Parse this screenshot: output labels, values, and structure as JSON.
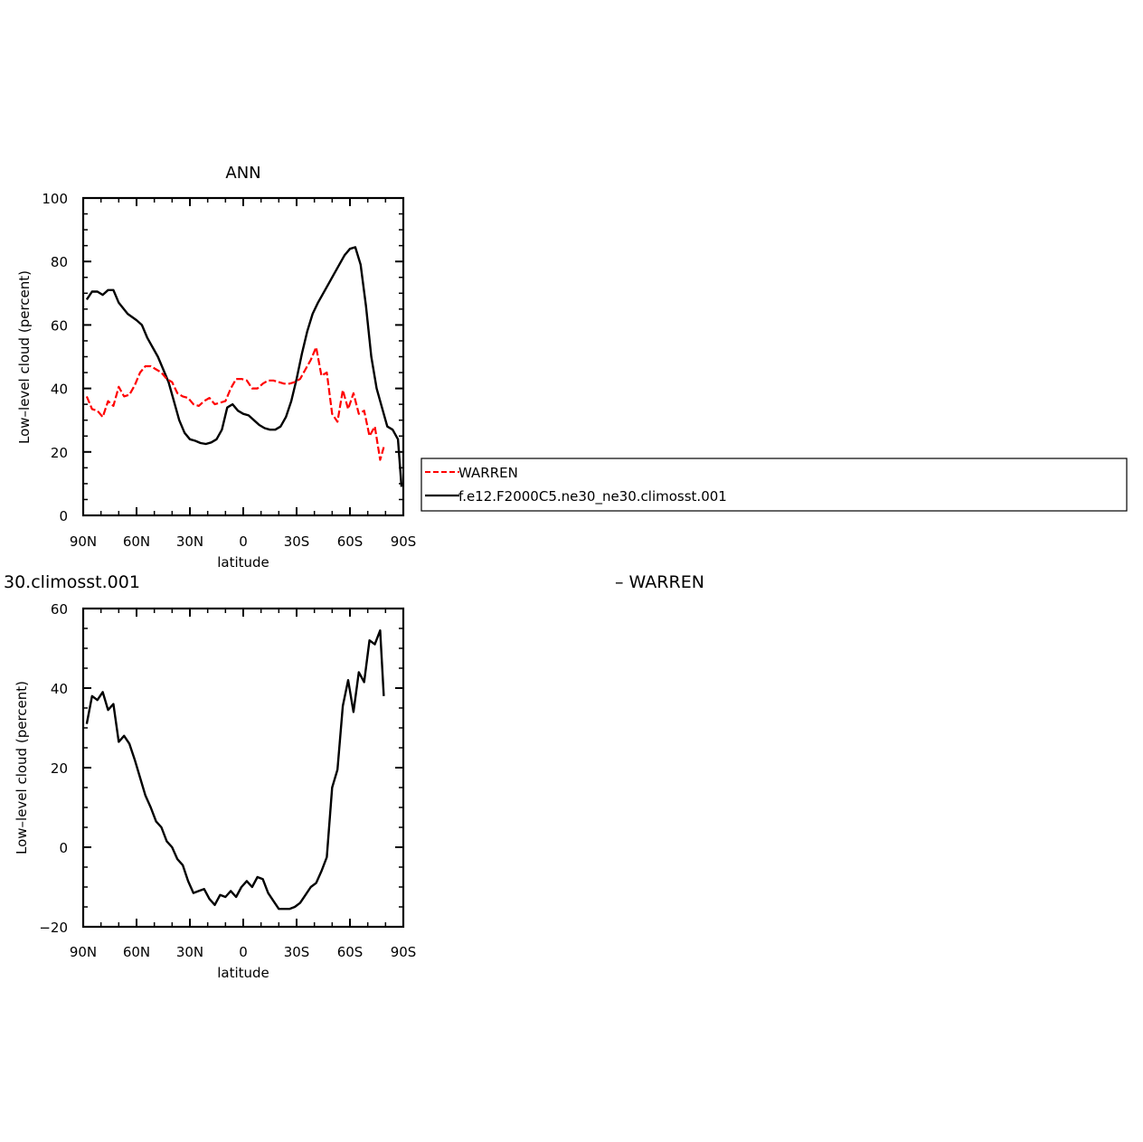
{
  "colors": {
    "axis": "#000000",
    "model_line": "#000000",
    "obs_line": "#ff0000",
    "background": "#ffffff"
  },
  "legend": {
    "entries": [
      {
        "name": "WARREN",
        "color": "#ff0000",
        "style": "dashed"
      },
      {
        "name": "f.e12.F2000C5.ne30_ne30.climosst.001",
        "color": "#000000",
        "style": "solid"
      }
    ]
  },
  "diff_title": {
    "left": "30.climosst.001",
    "right": "– WARREN"
  },
  "chart_data": [
    {
      "type": "line",
      "title": "ANN",
      "xlabel": "latitude",
      "ylabel": "Low–level cloud (percent)",
      "xlim": [
        90,
        -90
      ],
      "ylim": [
        0,
        100
      ],
      "x_ticks": [
        {
          "value": 90,
          "label": "90N"
        },
        {
          "value": 60,
          "label": "60N"
        },
        {
          "value": 30,
          "label": "30N"
        },
        {
          "value": 0,
          "label": "0"
        },
        {
          "value": -30,
          "label": "30S"
        },
        {
          "value": -60,
          "label": "60S"
        },
        {
          "value": -90,
          "label": "90S"
        }
      ],
      "y_ticks": [
        {
          "value": 0,
          "label": "0"
        },
        {
          "value": 20,
          "label": "20"
        },
        {
          "value": 40,
          "label": "40"
        },
        {
          "value": 60,
          "label": "60"
        },
        {
          "value": 80,
          "label": "80"
        },
        {
          "value": 100,
          "label": "100"
        }
      ],
      "grid": false,
      "legend_position": "right",
      "series": [
        {
          "name": "f.e12.F2000C5.ne30_ne30.climosst.001",
          "color": "#000000",
          "dash": "solid",
          "x": [
            88,
            85,
            82,
            79,
            76,
            73,
            70,
            65,
            60,
            57,
            54,
            51,
            48,
            45,
            42,
            39,
            36,
            33,
            30,
            27,
            24,
            21,
            18,
            15,
            12,
            9,
            6,
            3,
            0,
            -3,
            -6,
            -9,
            -12,
            -15,
            -18,
            -21,
            -24,
            -27,
            -30,
            -33,
            -36,
            -39,
            -42,
            -45,
            -48,
            -51,
            -54,
            -57,
            -60,
            -63,
            -66,
            -69,
            -72,
            -75,
            -78,
            -81,
            -84,
            -87,
            -89
          ],
          "y": [
            68,
            70.5,
            70.5,
            69.5,
            71,
            71,
            67,
            63.5,
            61.5,
            60,
            56,
            53,
            50,
            46,
            42,
            36,
            30,
            26,
            24,
            23.5,
            22.8,
            22.5,
            23,
            24,
            27,
            34,
            35,
            33,
            32,
            31.5,
            30,
            28.5,
            27.5,
            27,
            27,
            28,
            31,
            36,
            43,
            51,
            58,
            63.5,
            67,
            70,
            73,
            76,
            79,
            82,
            84,
            84.5,
            79,
            66,
            50,
            40,
            34,
            28,
            27,
            24,
            9
          ]
        },
        {
          "name": "WARREN",
          "color": "#ff0000",
          "dash": "dashed",
          "x": [
            88,
            85,
            82,
            79,
            76,
            73,
            70,
            67,
            64,
            61,
            58,
            55,
            52,
            49,
            46,
            43,
            40,
            37,
            34,
            31,
            28,
            25,
            22,
            19,
            16,
            13,
            10,
            7,
            4,
            1,
            -2,
            -5,
            -8,
            -11,
            -14,
            -17,
            -20,
            -23,
            -26,
            -29,
            -32,
            -35,
            -38,
            -41,
            -44,
            -47,
            -50,
            -53,
            -56,
            -59,
            -62,
            -65,
            -68,
            -71,
            -74,
            -77,
            -79
          ],
          "y": [
            37.5,
            33.5,
            33,
            31,
            36,
            34.5,
            40.5,
            37.5,
            38,
            41,
            45,
            47,
            47,
            46,
            45,
            43,
            42,
            38.5,
            37.5,
            37,
            35,
            34.5,
            36,
            37,
            35,
            35.5,
            36,
            40,
            43,
            43,
            42.5,
            40,
            40,
            41.5,
            42.5,
            42.5,
            42,
            41.5,
            41.5,
            42,
            43,
            46,
            49,
            53,
            44,
            45,
            32,
            29.5,
            39.5,
            33.5,
            38.5,
            32,
            33,
            25,
            28,
            17.5,
            21.5
          ]
        }
      ]
    },
    {
      "type": "line",
      "title": "",
      "xlabel": "latitude",
      "ylabel": "Low–level cloud (percent)",
      "xlim": [
        90,
        -90
      ],
      "ylim": [
        -20,
        60
      ],
      "x_ticks": [
        {
          "value": 90,
          "label": "90N"
        },
        {
          "value": 60,
          "label": "60N"
        },
        {
          "value": 30,
          "label": "30N"
        },
        {
          "value": 0,
          "label": "0"
        },
        {
          "value": -30,
          "label": "30S"
        },
        {
          "value": -60,
          "label": "60S"
        },
        {
          "value": -90,
          "label": "90S"
        }
      ],
      "y_ticks": [
        {
          "value": -20,
          "label": "−20"
        },
        {
          "value": 0,
          "label": "0"
        },
        {
          "value": 20,
          "label": "20"
        },
        {
          "value": 40,
          "label": "40"
        },
        {
          "value": 60,
          "label": "60"
        }
      ],
      "grid": false,
      "series": [
        {
          "color": "#000000",
          "dash": "solid",
          "x": [
            88,
            85,
            82,
            79,
            76,
            73,
            70,
            67,
            64,
            61,
            58,
            55,
            52,
            49,
            46,
            43,
            40,
            37,
            34,
            31,
            28,
            25,
            22,
            19,
            16,
            13,
            10,
            7,
            4,
            1,
            -2,
            -5,
            -8,
            -11,
            -14,
            -17,
            -20,
            -23,
            -26,
            -29,
            -32,
            -35,
            -38,
            -41,
            -44,
            -47,
            -50,
            -53,
            -56,
            -59,
            -62,
            -65,
            -68,
            -71,
            -74,
            -77,
            -79
          ],
          "y": [
            31,
            38,
            37,
            39,
            34.5,
            36,
            26.5,
            28,
            26,
            22,
            17.5,
            13,
            10,
            6.5,
            5,
            1.5,
            0,
            -3,
            -4.5,
            -8.5,
            -11.5,
            -11,
            -10.5,
            -13,
            -14.5,
            -12,
            -12.5,
            -11,
            -12.5,
            -10,
            -8.5,
            -10,
            -7.5,
            -8,
            -11.5,
            -13.5,
            -15.5,
            -15.5,
            -15.5,
            -15,
            -14,
            -12,
            -10,
            -9,
            -6,
            -2.5,
            15,
            19.5,
            35.5,
            42,
            34,
            44,
            41.5,
            52,
            51,
            54.5,
            38
          ]
        }
      ]
    }
  ]
}
